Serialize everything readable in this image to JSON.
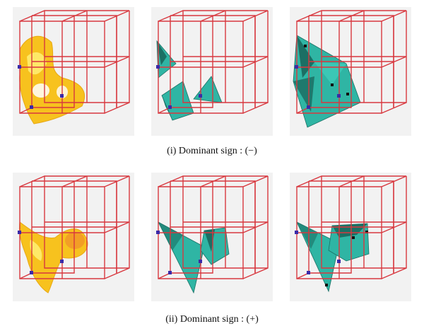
{
  "rows": [
    {
      "caption": "(i) Dominant sign : (−)",
      "panels": [
        {
          "surface": "yellow-isosurface"
        },
        {
          "surface": "teal-polygon-fragments"
        },
        {
          "surface": "teal-polygon-connected"
        }
      ]
    },
    {
      "caption": "(ii) Dominant sign : (+)",
      "panels": [
        {
          "surface": "yellow-isosurface"
        },
        {
          "surface": "teal-polygon-fragments"
        },
        {
          "surface": "teal-polygon-connected"
        }
      ]
    }
  ],
  "colors": {
    "grid_line": "#d8383f",
    "vertex_marker": "#3a2aa8",
    "yellow_surface": "#f7c21e",
    "yellow_highlight": "#fff27a",
    "teal_surface": "#2fb5a4",
    "teal_dark": "#1b6f64",
    "panel_bg": "#f2f2f2"
  }
}
